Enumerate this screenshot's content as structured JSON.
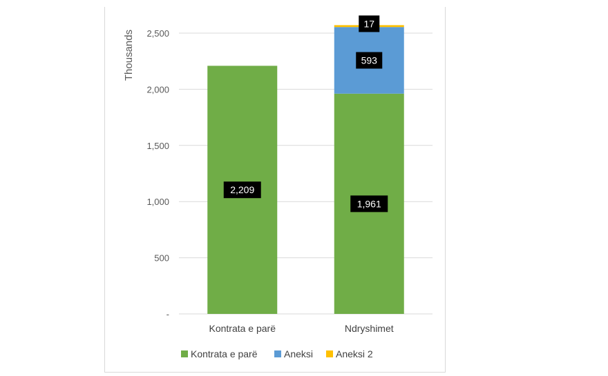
{
  "chart_data": {
    "type": "bar",
    "stacked": true,
    "ylabel": "Thousands",
    "ylim": [
      0,
      2500
    ],
    "yticks": [
      0,
      500,
      1000,
      1500,
      2000,
      2500
    ],
    "ytick_labels": [
      "-",
      "500",
      "1,000",
      "1,500",
      "2,000",
      "2,500"
    ],
    "categories": [
      "Kontrata e parë",
      "Ndryshimet"
    ],
    "series": [
      {
        "name": "Kontrata e parë",
        "color": "#70ad47",
        "values": [
          2209,
          1961
        ],
        "labels": [
          "2,209",
          "1,961"
        ]
      },
      {
        "name": "Aneksi",
        "color": "#5b9bd5",
        "values": [
          0,
          593
        ],
        "labels": [
          "",
          "593"
        ]
      },
      {
        "name": "Aneksi 2",
        "color": "#ffc000",
        "values": [
          0,
          17
        ],
        "labels": [
          "",
          "17"
        ]
      }
    ],
    "grid": true,
    "legend": "bottom"
  }
}
